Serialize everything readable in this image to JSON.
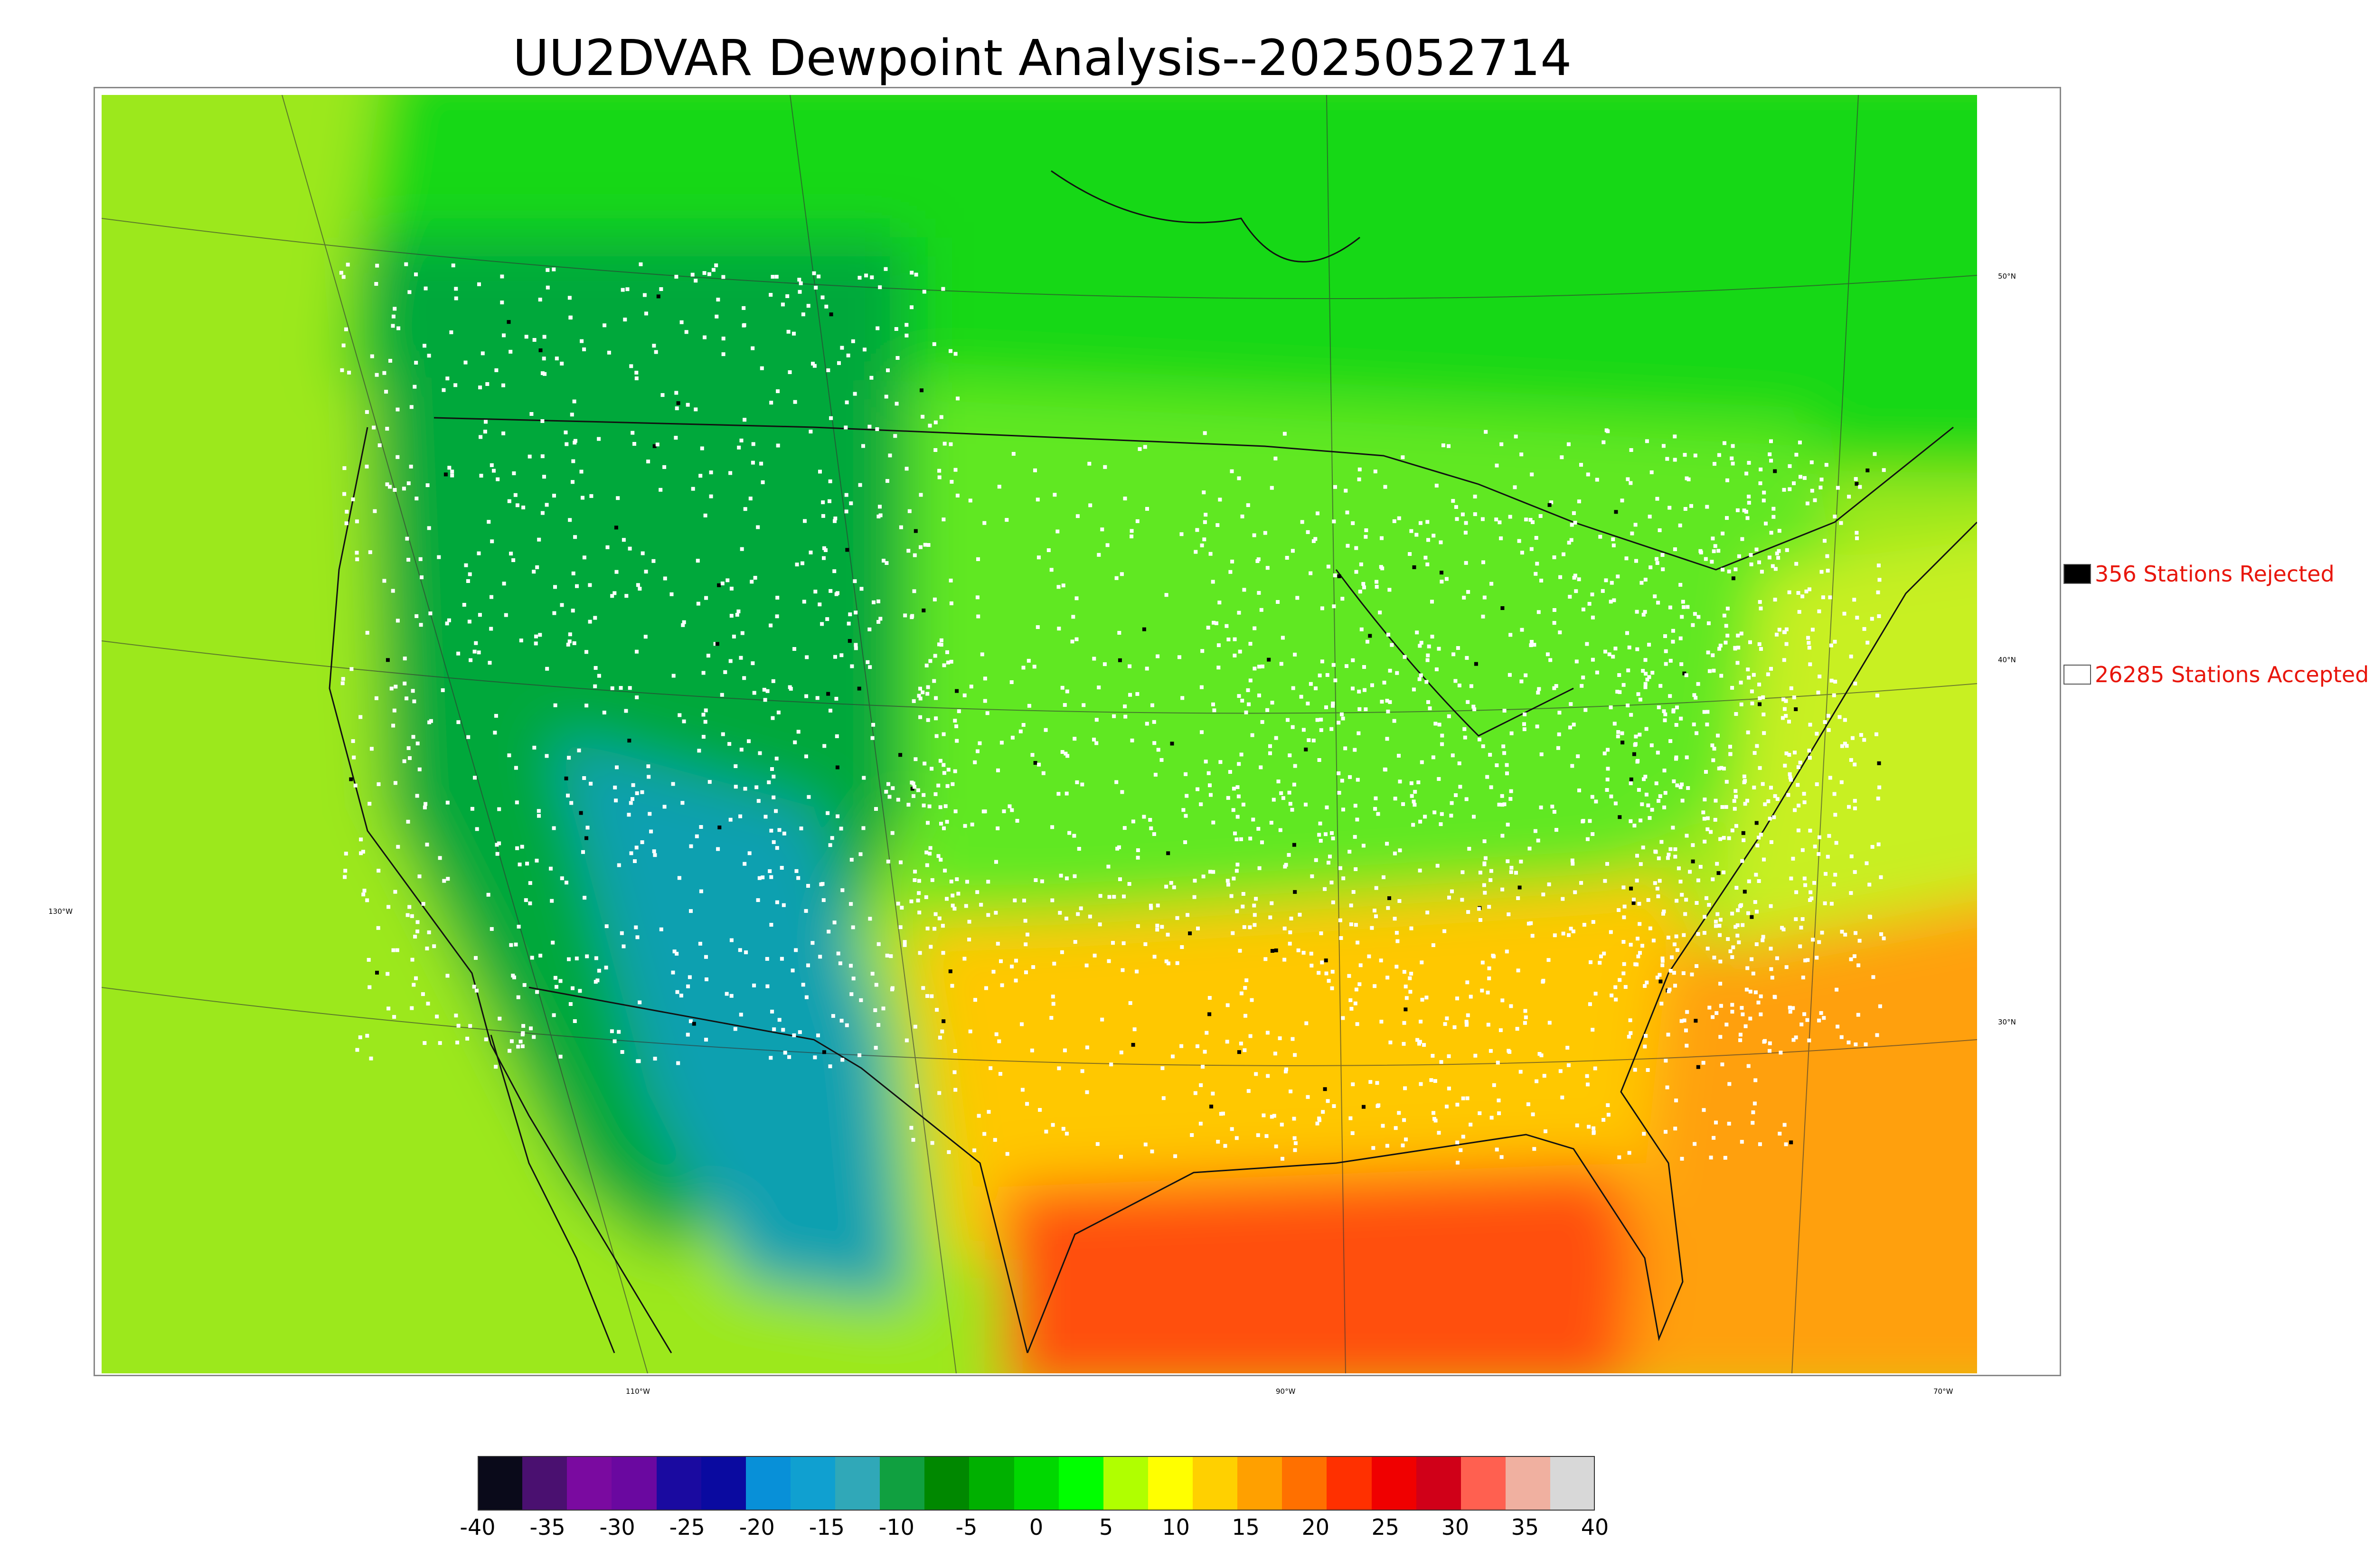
{
  "title": "UU2DVAR Dewpoint Analysis--2025052714",
  "legend": {
    "rejected": {
      "label": "356 Stations Rejected",
      "swatch_color": "#000000"
    },
    "accepted": {
      "label": "26285 Stations Accepted",
      "swatch_color": "#ffffff"
    }
  },
  "graticule_labels": {
    "lat": [
      "50°N",
      "40°N",
      "30°N"
    ],
    "lon": [
      "130°W",
      "110°W",
      "90°W",
      "70°W"
    ]
  },
  "colorbar": {
    "ticks": [
      "-40",
      "-35",
      "-30",
      "-25",
      "-20",
      "-15",
      "-10",
      "-5",
      "0",
      "5",
      "10",
      "15",
      "20",
      "25",
      "30",
      "35",
      "40"
    ],
    "colors": [
      "#0a0a1a",
      "#4a1070",
      "#7a0aa0",
      "#6a08a0",
      "#1a0aa0",
      "#0a0aa0",
      "#0890d8",
      "#10a0d0",
      "#30a8b8",
      "#10a040",
      "#008800",
      "#00b000",
      "#00d800",
      "#00ff00",
      "#b0ff00",
      "#ffff00",
      "#ffd000",
      "#ffa000",
      "#ff7000",
      "#ff3000",
      "#f00000",
      "#d00018",
      "#ff6050",
      "#f0b0a0",
      "#d8d8d8"
    ]
  },
  "colors": {
    "pacific": "#9ce81a",
    "canada": "#14d814",
    "west_dry": "#00a83a",
    "southwest_dry": "#10a0b0",
    "plains": "#60e820",
    "south": "#ffc800",
    "gulf": "#ff5010",
    "atlantic_south": "#ffa010",
    "atlantic_north": "#c8f020",
    "station_accepted": "#ffffff",
    "station_rejected": "#000000"
  }
}
